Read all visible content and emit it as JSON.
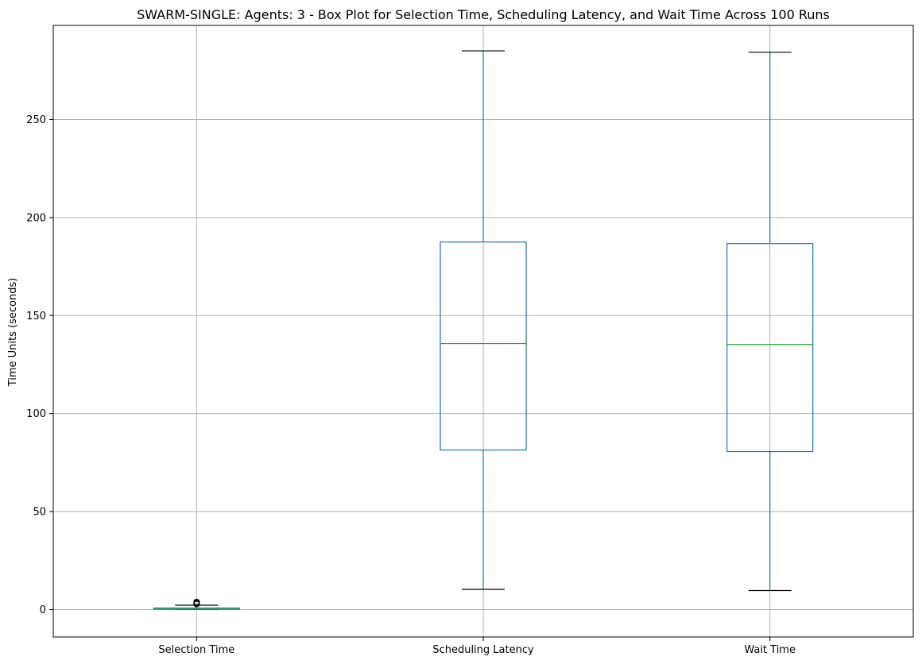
{
  "chart_data": {
    "type": "box",
    "title": "SWARM-SINGLE: Agents: 3 - Box Plot for Selection Time, Scheduling Latency, and Wait Time Across 100 Runs",
    "xlabel": "",
    "ylabel": "Time Units (seconds)",
    "ylim": [
      -14,
      298
    ],
    "yticks": [
      0,
      50,
      100,
      150,
      200,
      250
    ],
    "grid": true,
    "colors": {
      "box": "#1f77b4",
      "median": "#2ca02c",
      "cap": "#000000",
      "grid": "#b0b0b0"
    },
    "categories": [
      "Selection Time",
      "Scheduling Latency",
      "Wait Time"
    ],
    "boxes": [
      {
        "name": "Selection Time",
        "whisker_low": 0.0,
        "q1": 0.1,
        "median": 0.3,
        "q3": 0.8,
        "whisker_high": 2.2,
        "outliers": [
          2.8,
          3.2,
          3.6,
          3.9
        ]
      },
      {
        "name": "Scheduling Latency",
        "whisker_low": 10.3,
        "q1": 81.4,
        "median": 135.7,
        "q3": 187.5,
        "whisker_high": 285.0,
        "outliers": []
      },
      {
        "name": "Wait Time",
        "whisker_low": 9.7,
        "q1": 80.6,
        "median": 135.2,
        "q3": 186.7,
        "whisker_high": 284.3,
        "outliers": []
      }
    ]
  }
}
